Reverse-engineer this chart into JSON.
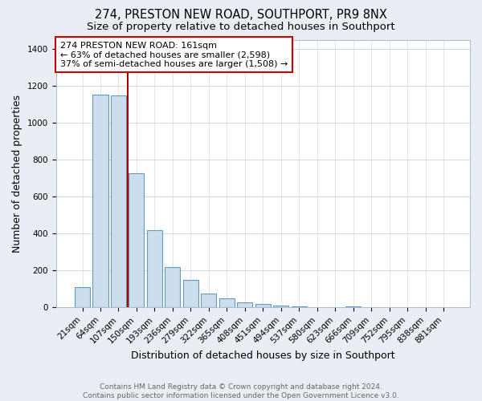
{
  "title": "274, PRESTON NEW ROAD, SOUTHPORT, PR9 8NX",
  "subtitle": "Size of property relative to detached houses in Southport",
  "xlabel": "Distribution of detached houses by size in Southport",
  "ylabel": "Number of detached properties",
  "categories": [
    "21sqm",
    "64sqm",
    "107sqm",
    "150sqm",
    "193sqm",
    "236sqm",
    "279sqm",
    "322sqm",
    "365sqm",
    "408sqm",
    "451sqm",
    "494sqm",
    "537sqm",
    "580sqm",
    "623sqm",
    "666sqm",
    "709sqm",
    "752sqm",
    "795sqm",
    "838sqm",
    "881sqm"
  ],
  "values": [
    110,
    1155,
    1150,
    730,
    420,
    220,
    150,
    75,
    50,
    30,
    18,
    12,
    8,
    0,
    0,
    5,
    0,
    0,
    0,
    0,
    0
  ],
  "bar_color": "#ccdded",
  "bar_edge_color": "#6699bb",
  "property_line_after_index": 2,
  "property_line_color": "#aa0000",
  "annotation_text": "274 PRESTON NEW ROAD: 161sqm\n← 63% of detached houses are smaller (2,598)\n37% of semi-detached houses are larger (1,508) →",
  "annotation_box_color": "white",
  "annotation_box_edge_color": "#cc0000",
  "ylim": [
    0,
    1450
  ],
  "yticks": [
    0,
    200,
    400,
    600,
    800,
    1000,
    1200,
    1400
  ],
  "footer": "Contains HM Land Registry data © Crown copyright and database right 2024.\nContains public sector information licensed under the Open Government Licence v3.0.",
  "bg_color": "#e8eef4",
  "plot_bg_color": "#ffffff",
  "title_fontsize": 10.5,
  "subtitle_fontsize": 9.5,
  "axis_label_fontsize": 9,
  "tick_fontsize": 7.5,
  "annotation_fontsize": 8,
  "footer_fontsize": 6.5,
  "grid_color": "#c8d4de"
}
